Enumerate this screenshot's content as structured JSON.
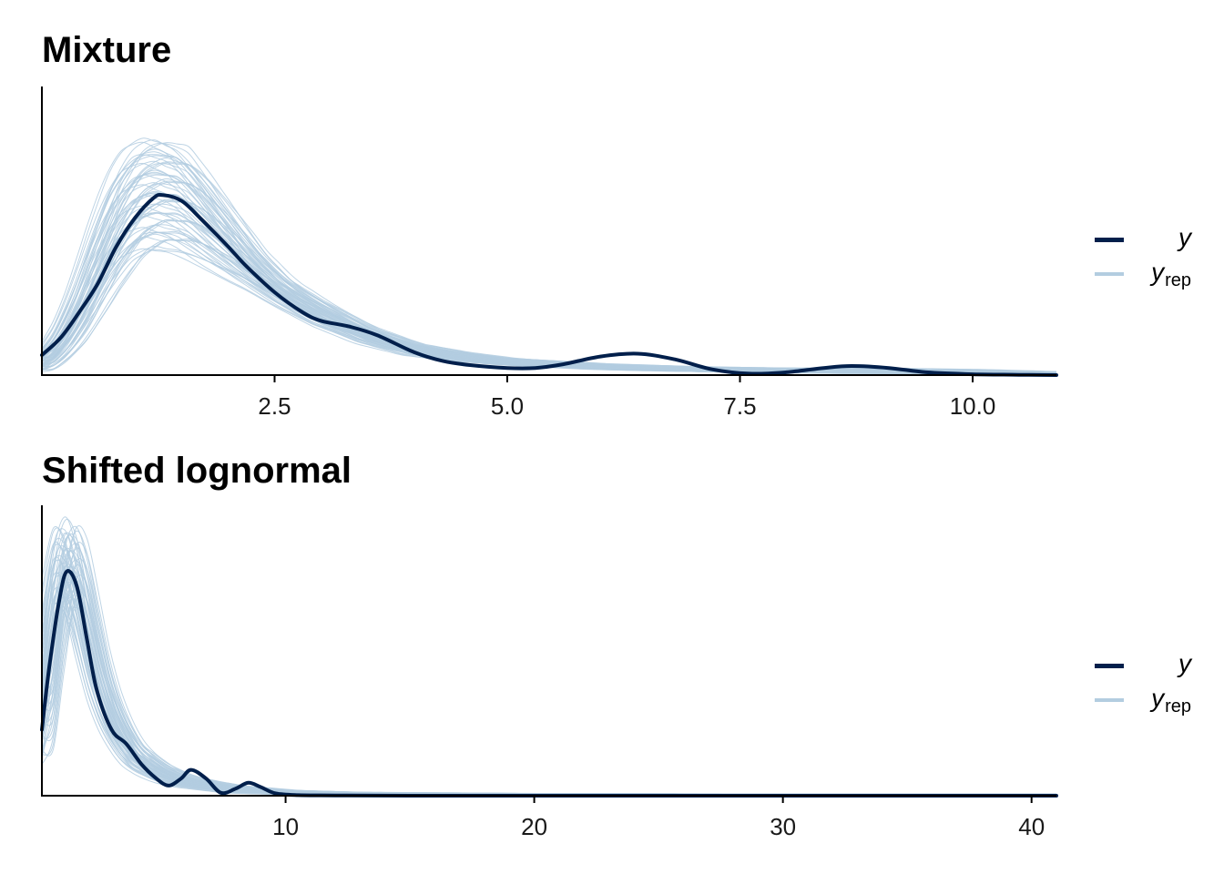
{
  "colors": {
    "y": "#011f4b",
    "yrep": "#b3cde0",
    "axis": "#000000"
  },
  "legend": {
    "y_label": "y",
    "yrep_base": "y",
    "yrep_sub": "rep"
  },
  "chart_data": [
    {
      "type": "line",
      "title": "Mixture",
      "xlabel": "",
      "ylabel": "",
      "xlim": [
        0.0,
        10.9
      ],
      "xticks": [
        2.5,
        5.0,
        7.5,
        10.0
      ],
      "tick_labels": [
        "2.5",
        "5.0",
        "7.5",
        "10.0"
      ],
      "y_axis_labels": false,
      "legend_position": "right",
      "series": [
        {
          "name": "y",
          "x": [
            0.0,
            0.2,
            0.4,
            0.6,
            0.8,
            1.0,
            1.2,
            1.3,
            1.5,
            1.7,
            2.0,
            2.2,
            2.5,
            2.8,
            3.0,
            3.3,
            3.6,
            4.0,
            4.3,
            4.6,
            5.0,
            5.3,
            5.6,
            6.0,
            6.4,
            6.8,
            7.2,
            7.6,
            8.0,
            8.4,
            8.7,
            9.1,
            9.5,
            10.0,
            10.5,
            10.9
          ],
          "y": [
            0.07,
            0.13,
            0.22,
            0.32,
            0.45,
            0.55,
            0.62,
            0.63,
            0.61,
            0.55,
            0.45,
            0.38,
            0.29,
            0.22,
            0.19,
            0.17,
            0.14,
            0.08,
            0.05,
            0.035,
            0.025,
            0.025,
            0.038,
            0.065,
            0.075,
            0.055,
            0.02,
            0.005,
            0.01,
            0.025,
            0.032,
            0.025,
            0.01,
            0.003,
            0.001,
            0.0
          ]
        }
      ],
      "y_rep_bands": [
        {
          "x": [
            0.0,
            0.2,
            0.4,
            0.6,
            0.8,
            1.0,
            1.2,
            1.5,
            1.7,
            2.0,
            2.3,
            2.6,
            3.0,
            3.5,
            4.0,
            4.5,
            5.0,
            6.0,
            7.0,
            8.0,
            9.0,
            10.0,
            10.9
          ],
          "low": [
            0.01,
            0.05,
            0.12,
            0.22,
            0.32,
            0.4,
            0.44,
            0.43,
            0.4,
            0.35,
            0.3,
            0.24,
            0.17,
            0.11,
            0.07,
            0.05,
            0.035,
            0.02,
            0.012,
            0.008,
            0.005,
            0.003,
            0.002
          ],
          "high": [
            0.07,
            0.16,
            0.32,
            0.52,
            0.7,
            0.8,
            0.83,
            0.8,
            0.72,
            0.58,
            0.44,
            0.34,
            0.26,
            0.17,
            0.11,
            0.08,
            0.06,
            0.04,
            0.03,
            0.025,
            0.025,
            0.02,
            0.012
          ]
        }
      ]
    },
    {
      "type": "line",
      "title": "Shifted lognormal",
      "xlabel": "",
      "ylabel": "",
      "xlim": [
        0.2,
        41.0
      ],
      "xticks": [
        10,
        20,
        30,
        40
      ],
      "tick_labels": [
        "10",
        "20",
        "30",
        "40"
      ],
      "y_axis_labels": false,
      "legend_position": "right",
      "series": [
        {
          "name": "y",
          "x": [
            0.2,
            0.5,
            0.9,
            1.2,
            1.6,
            2.0,
            2.4,
            3.0,
            3.6,
            4.2,
            4.8,
            5.3,
            5.8,
            6.2,
            6.8,
            7.4,
            8.0,
            8.5,
            9.0,
            9.6,
            10.5,
            12.0,
            15.0,
            20.0,
            30.0,
            41.0
          ],
          "y": [
            0.23,
            0.45,
            0.68,
            0.78,
            0.73,
            0.55,
            0.37,
            0.23,
            0.18,
            0.11,
            0.06,
            0.035,
            0.06,
            0.09,
            0.06,
            0.01,
            0.025,
            0.045,
            0.03,
            0.008,
            0.002,
            0.001,
            0.0,
            0.0,
            0.0,
            0.0
          ]
        }
      ],
      "y_rep_bands": [
        {
          "x": [
            0.2,
            0.6,
            0.9,
            1.2,
            1.6,
            2.0,
            2.5,
            3.0,
            3.5,
            4.0,
            5.0,
            6.0,
            7.0,
            8.0,
            10.0,
            13.0,
            20.0,
            30.0,
            41.0
          ],
          "low": [
            0.1,
            0.35,
            0.58,
            0.66,
            0.62,
            0.48,
            0.32,
            0.21,
            0.14,
            0.09,
            0.05,
            0.03,
            0.02,
            0.01,
            0.004,
            0.002,
            0.001,
            0.0,
            0.0
          ],
          "high": [
            0.4,
            0.75,
            0.92,
            0.97,
            0.9,
            0.72,
            0.5,
            0.35,
            0.25,
            0.18,
            0.11,
            0.07,
            0.05,
            0.035,
            0.02,
            0.012,
            0.008,
            0.006,
            0.006
          ]
        }
      ]
    }
  ]
}
